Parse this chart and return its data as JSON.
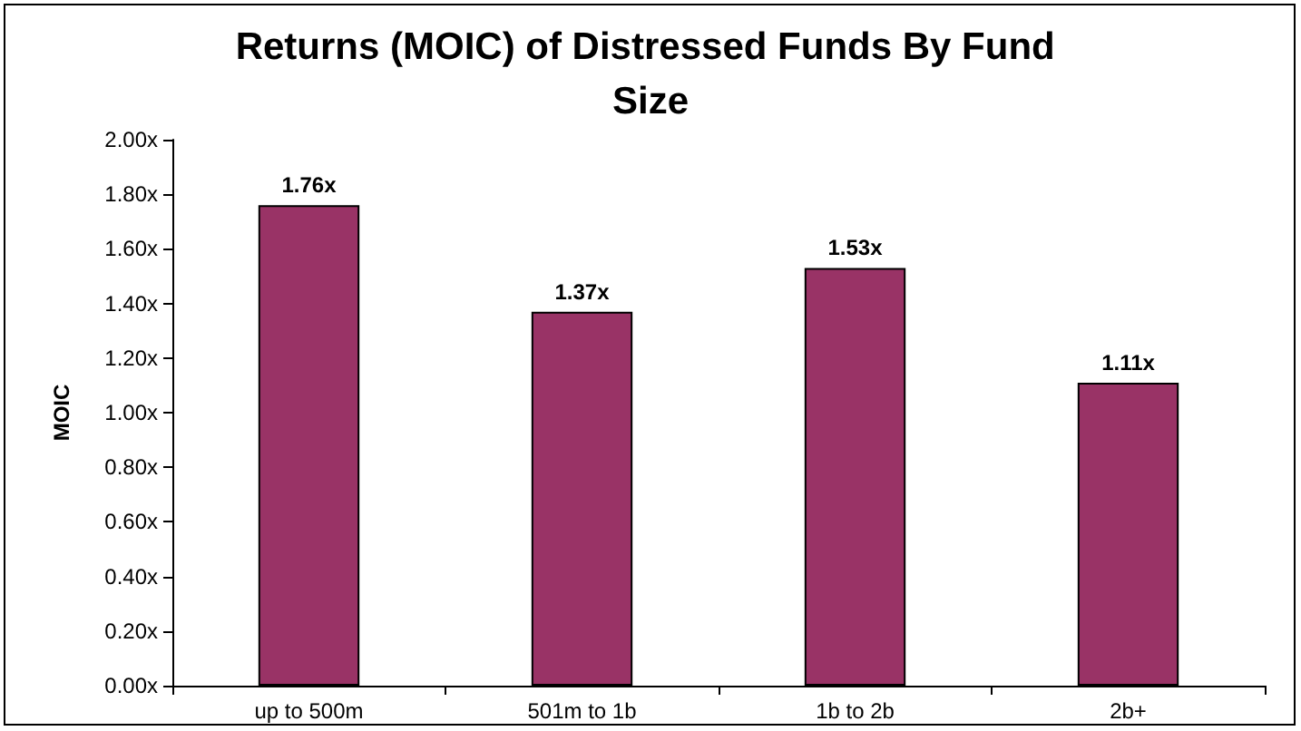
{
  "chart_data": {
    "type": "bar",
    "title": "Returns (MOIC) of Distressed Funds By Fund Size",
    "ylabel": "MOIC",
    "categories": [
      "up to 500m",
      "501m to 1b",
      "1b to 2b",
      "2b+"
    ],
    "values": [
      1.76,
      1.37,
      1.53,
      1.11
    ],
    "value_labels": [
      "1.76x",
      "1.37x",
      "1.53x",
      "1.11x"
    ],
    "color": "#993366",
    "ylim": [
      0,
      2
    ],
    "yticks": [
      {
        "value": 0,
        "label": "0.00x"
      },
      {
        "value": 0.2,
        "label": "0.20x"
      },
      {
        "value": 0.4,
        "label": "0.40x"
      },
      {
        "value": 0.6,
        "label": "0.60x"
      },
      {
        "value": 0.8,
        "label": "0.80x"
      },
      {
        "value": 1,
        "label": "1.00x"
      },
      {
        "value": 1.2,
        "label": "1.20x"
      },
      {
        "value": 1.4,
        "label": "1.40x"
      },
      {
        "value": 1.6,
        "label": "1.60x"
      },
      {
        "value": 1.8,
        "label": "1.80x"
      },
      {
        "value": 2,
        "label": "2.00x"
      }
    ],
    "grid": false
  }
}
